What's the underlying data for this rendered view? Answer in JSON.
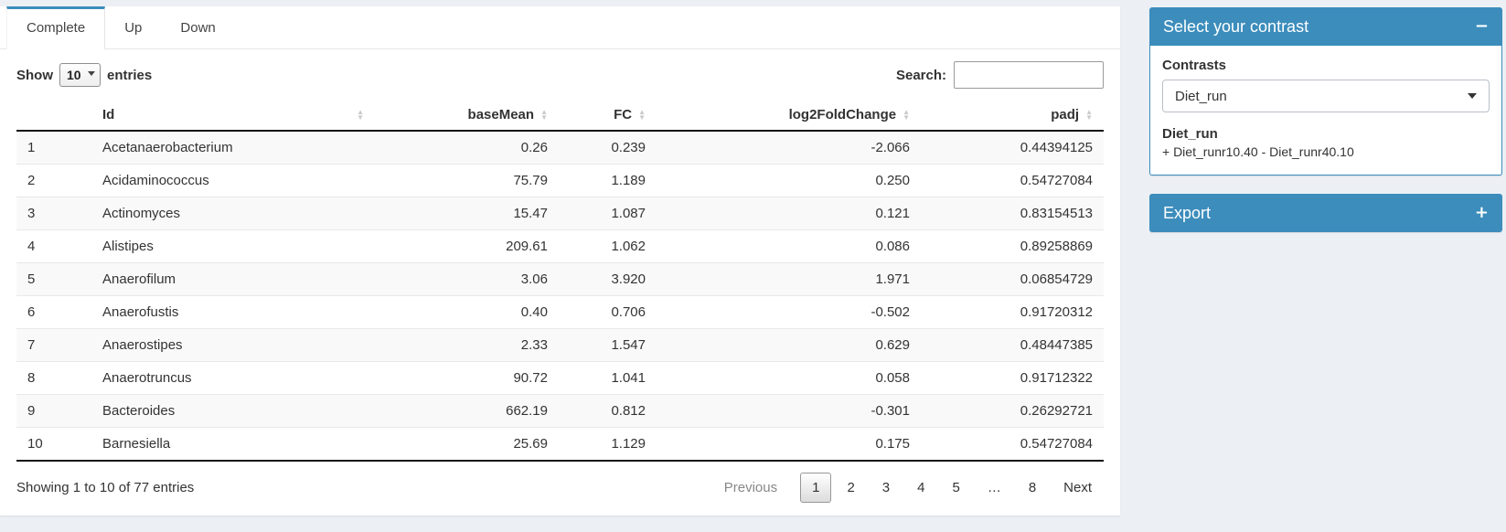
{
  "tabs": [
    {
      "label": "Complete",
      "active": true
    },
    {
      "label": "Up",
      "active": false
    },
    {
      "label": "Down",
      "active": false
    }
  ],
  "controls": {
    "show_label": "Show",
    "entries_value": "10",
    "entries_suffix": "entries",
    "search_label": "Search:",
    "search_value": ""
  },
  "table": {
    "headers": {
      "num": "",
      "id": "Id",
      "baseMean": "baseMean",
      "fc": "FC",
      "log2fc": "log2FoldChange",
      "padj": "padj"
    },
    "sort_icon_up": "▲",
    "sort_icon_down": "▼",
    "rows": [
      {
        "n": "1",
        "id": "Acetanaerobacterium",
        "baseMean": "0.26",
        "fc": "0.239",
        "log2fc": "-2.066",
        "padj": "0.44394125"
      },
      {
        "n": "2",
        "id": "Acidaminococcus",
        "baseMean": "75.79",
        "fc": "1.189",
        "log2fc": "0.250",
        "padj": "0.54727084"
      },
      {
        "n": "3",
        "id": "Actinomyces",
        "baseMean": "15.47",
        "fc": "1.087",
        "log2fc": "0.121",
        "padj": "0.83154513"
      },
      {
        "n": "4",
        "id": "Alistipes",
        "baseMean": "209.61",
        "fc": "1.062",
        "log2fc": "0.086",
        "padj": "0.89258869"
      },
      {
        "n": "5",
        "id": "Anaerofilum",
        "baseMean": "3.06",
        "fc": "3.920",
        "log2fc": "1.971",
        "padj": "0.06854729"
      },
      {
        "n": "6",
        "id": "Anaerofustis",
        "baseMean": "0.40",
        "fc": "0.706",
        "log2fc": "-0.502",
        "padj": "0.91720312"
      },
      {
        "n": "7",
        "id": "Anaerostipes",
        "baseMean": "2.33",
        "fc": "1.547",
        "log2fc": "0.629",
        "padj": "0.48447385"
      },
      {
        "n": "8",
        "id": "Anaerotruncus",
        "baseMean": "90.72",
        "fc": "1.041",
        "log2fc": "0.058",
        "padj": "0.91712322"
      },
      {
        "n": "9",
        "id": "Bacteroides",
        "baseMean": "662.19",
        "fc": "0.812",
        "log2fc": "-0.301",
        "padj": "0.26292721"
      },
      {
        "n": "10",
        "id": "Barnesiella",
        "baseMean": "25.69",
        "fc": "1.129",
        "log2fc": "0.175",
        "padj": "0.54727084"
      }
    ]
  },
  "footer": {
    "info": "Showing 1 to 10 of 77 entries",
    "pagination": [
      {
        "label": "Previous",
        "state": "disabled"
      },
      {
        "label": "1",
        "state": "active"
      },
      {
        "label": "2",
        "state": "normal"
      },
      {
        "label": "3",
        "state": "normal"
      },
      {
        "label": "4",
        "state": "normal"
      },
      {
        "label": "5",
        "state": "normal"
      },
      {
        "label": "…",
        "state": "normal"
      },
      {
        "label": "8",
        "state": "normal"
      },
      {
        "label": "Next",
        "state": "normal"
      }
    ]
  },
  "contrast_box": {
    "title": "Select your contrast",
    "collapse_icon": "−",
    "contrasts_label": "Contrasts",
    "selected_contrast": "Diet_run",
    "detail_title": "Diet_run",
    "detail_formula": "+ Diet_runr10.40 - Diet_runr40.10"
  },
  "export_box": {
    "title": "Export",
    "expand_icon": "+"
  },
  "colors": {
    "primary_blue": "#3c8dbc",
    "page_background": "#ecf0f5",
    "stripe_row": "#f9f9f9"
  }
}
